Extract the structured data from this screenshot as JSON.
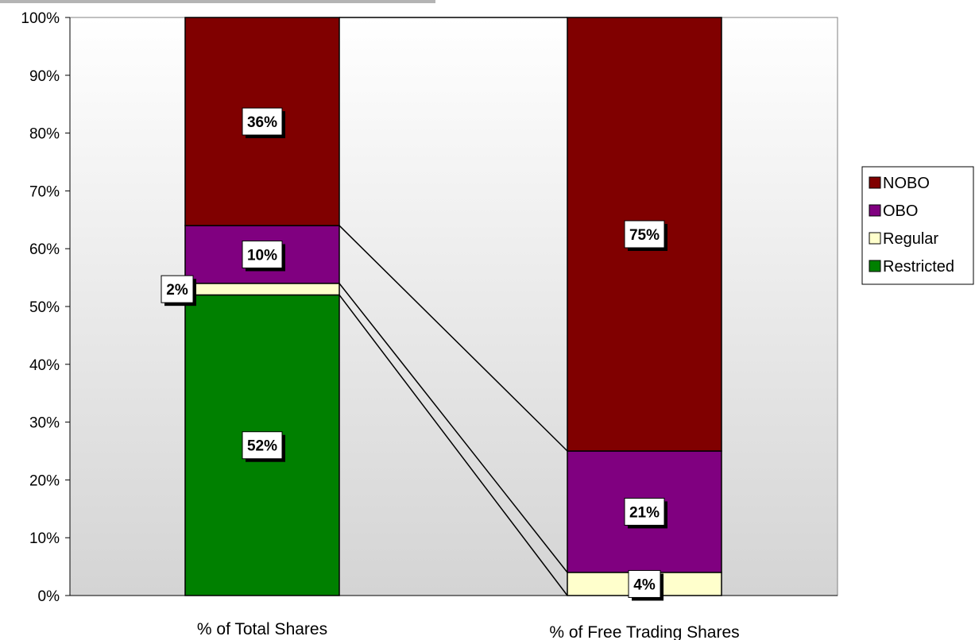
{
  "chart_data": {
    "type": "bar",
    "stacked": true,
    "categories": [
      "% of Total Shares",
      "% of Free Trading Shares"
    ],
    "series": [
      {
        "name": "Restricted",
        "values": [
          52,
          0
        ],
        "color": "#008000",
        "labels": [
          "52%",
          ""
        ]
      },
      {
        "name": "Regular",
        "values": [
          2,
          4
        ],
        "color": "#FFFFCC",
        "labels": [
          "2%",
          "4%"
        ]
      },
      {
        "name": "OBO",
        "values": [
          10,
          21
        ],
        "color": "#800080",
        "labels": [
          "10%",
          "21%"
        ]
      },
      {
        "name": "NOBO",
        "values": [
          36,
          75
        ],
        "color": "#800000",
        "labels": [
          "36%",
          "75%"
        ]
      }
    ],
    "ylim": [
      0,
      100
    ],
    "yticks": [
      "0%",
      "10%",
      "20%",
      "30%",
      "40%",
      "50%",
      "60%",
      "70%",
      "80%",
      "90%",
      "100%"
    ],
    "legend_order": [
      "NOBO",
      "OBO",
      "Regular",
      "Restricted"
    ],
    "legend_position": "right",
    "series_lines": true,
    "plot_background": "gradient gray"
  }
}
